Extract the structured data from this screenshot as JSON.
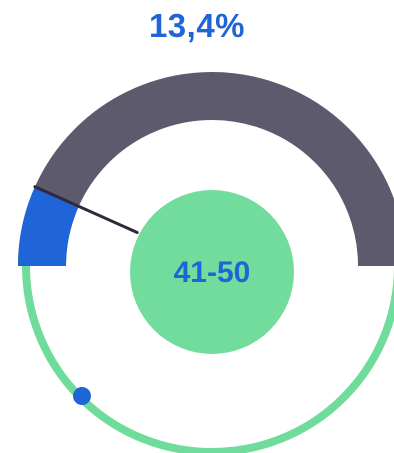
{
  "gauge": {
    "percent_label": "13,4%",
    "percent_value": 0.134,
    "range_label": "41-50"
  },
  "colors": {
    "accent_blue": "#2065d8",
    "track_dark": "#5e5a6e",
    "ring_green": "#6fdc9b",
    "center_green": "#72dc9d",
    "needle": "#2e2a3c",
    "background": "#ffffff"
  },
  "icons": {
    "needle": "gauge-needle",
    "marker": "dot-marker"
  }
}
